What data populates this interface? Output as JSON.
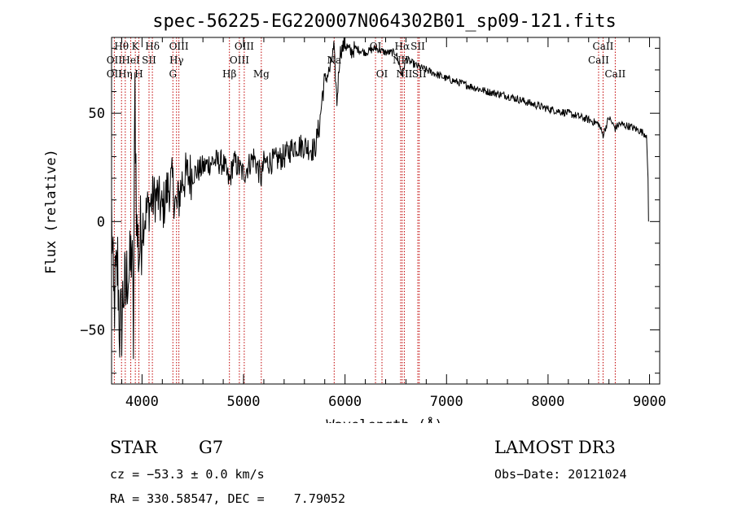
{
  "chart_data": {
    "type": "line",
    "title": "spec-56225-EG220007N064302B01_sp09-121.fits",
    "xlabel": "Wavelength (Å)",
    "ylabel": "Flux (relative)",
    "xlim": [
      3700,
      9100
    ],
    "ylim": [
      -75,
      85
    ],
    "xticks": [
      4000,
      5000,
      6000,
      7000,
      8000,
      9000
    ],
    "yticks": [
      -50,
      0,
      50
    ],
    "tick_labels_x": [
      "4000",
      "5000",
      "6000",
      "7000",
      "8000",
      "9000"
    ],
    "tick_labels_y": [
      "−50",
      "0",
      "50"
    ],
    "series": [
      {
        "name": "flux",
        "x": [
          3700,
          3720,
          3740,
          3760,
          3780,
          3800,
          3820,
          3840,
          3860,
          3880,
          3900,
          3915,
          3930,
          3950,
          3970,
          3990,
          4010,
          4050,
          4100,
          4150,
          4200,
          4250,
          4300,
          4340,
          4400,
          4500,
          4600,
          4700,
          4800,
          4861,
          4900,
          5000,
          5100,
          5175,
          5200,
          5300,
          5400,
          5500,
          5600,
          5700,
          5750,
          5780,
          5800,
          5850,
          5890,
          5920,
          5950,
          6000,
          6050,
          6100,
          6200,
          6300,
          6400,
          6500,
          6563,
          6600,
          6700,
          6800,
          6900,
          7000,
          7200,
          7400,
          7600,
          7800,
          8000,
          8200,
          8400,
          8498,
          8542,
          8600,
          8662,
          8700,
          8800,
          8900,
          8970,
          8985,
          8990
        ],
        "y": [
          5,
          -40,
          -30,
          -20,
          -50,
          -45,
          -30,
          -35,
          -20,
          -25,
          -10,
          -55,
          60,
          -5,
          -15,
          -5,
          0,
          5,
          10,
          12,
          5,
          15,
          18,
          5,
          20,
          22,
          25,
          28,
          27,
          18,
          28,
          22,
          30,
          20,
          27,
          28,
          30,
          35,
          35,
          33,
          45,
          60,
          65,
          70,
          80,
          55,
          78,
          82,
          78,
          80,
          78,
          80,
          78,
          78,
          68,
          75,
          72,
          70,
          68,
          66,
          63,
          60,
          58,
          55,
          52,
          50,
          47,
          45,
          40,
          48,
          43,
          45,
          44,
          42,
          40,
          20,
          0
        ]
      }
    ],
    "line_labels": [
      {
        "text": "Hθ",
        "wl": 3798,
        "row": 1
      },
      {
        "text": "OII",
        "wl": 3727,
        "row": 2
      },
      {
        "text": "OII",
        "wl": 3727,
        "row": 3
      },
      {
        "text": "K",
        "wl": 3934,
        "row": 1
      },
      {
        "text": "HeI",
        "wl": 3889,
        "row": 2
      },
      {
        "text": "Hη",
        "wl": 3835,
        "row": 3
      },
      {
        "text": "Hδ",
        "wl": 4102,
        "row": 1
      },
      {
        "text": "SII",
        "wl": 4069,
        "row": 2
      },
      {
        "text": "H",
        "wl": 3969,
        "row": 3
      },
      {
        "text": "OIII",
        "wl": 4363,
        "row": 1
      },
      {
        "text": "Hγ",
        "wl": 4340,
        "row": 2
      },
      {
        "text": "G",
        "wl": 4304,
        "row": 3
      },
      {
        "text": "OIII",
        "wl": 5007,
        "row": 1
      },
      {
        "text": "OIII",
        "wl": 4959,
        "row": 2
      },
      {
        "text": "Hβ",
        "wl": 4861,
        "row": 3
      },
      {
        "text": "Mg",
        "wl": 5175,
        "row": 3
      },
      {
        "text": "Na",
        "wl": 5893,
        "row": 2
      },
      {
        "text": "OI",
        "wl": 6300,
        "row": 1
      },
      {
        "text": "NII",
        "wl": 6548,
        "row": 2
      },
      {
        "text": "OI",
        "wl": 6364,
        "row": 3
      },
      {
        "text": "Hα",
        "wl": 6563,
        "row": 1
      },
      {
        "text": "SII",
        "wl": 6717,
        "row": 1
      },
      {
        "text": "NII",
        "wl": 6584,
        "row": 3
      },
      {
        "text": "SII",
        "wl": 6731,
        "row": 3
      },
      {
        "text": "CaII",
        "wl": 8542,
        "row": 1
      },
      {
        "text": "CaII",
        "wl": 8498,
        "row": 2
      },
      {
        "text": "CaII",
        "wl": 8662,
        "row": 3
      }
    ],
    "line_markers": [
      3727,
      3798,
      3835,
      3889,
      3934,
      3969,
      4069,
      4102,
      4304,
      4340,
      4363,
      4861,
      4959,
      5007,
      5175,
      5893,
      6300,
      6364,
      6548,
      6563,
      6584,
      6717,
      6731,
      8498,
      8542,
      8662
    ]
  },
  "info": {
    "class": "STAR",
    "subclass": "G7",
    "survey": "LAMOST DR3",
    "cz": "cz = −53.3 ± 0.0 km/s",
    "obsdate": "Obs−Date: 20121024",
    "radec": "RA = 330.58547, DEC =    7.79052"
  }
}
